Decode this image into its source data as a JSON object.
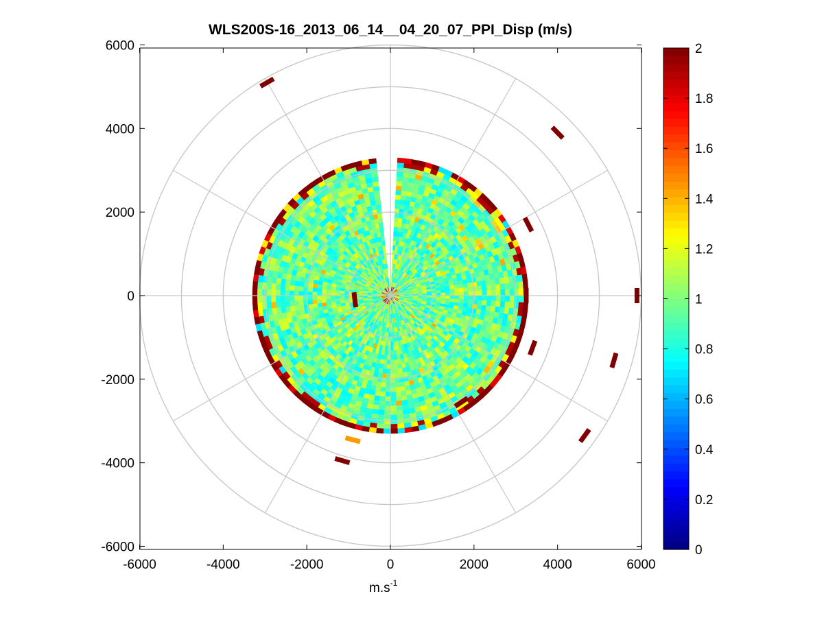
{
  "chart_data": {
    "type": "heatmap",
    "subtype": "polar-ppi-scan",
    "title": "WLS200S-16_2013_06_14__04_20_07_PPI_Disp (m/s)",
    "xlabel": "m.s",
    "xlabel_superscript": "-1",
    "ylabel": "",
    "xlim": [
      -6000,
      6000
    ],
    "ylim": [
      -6000,
      6000
    ],
    "xticks": [
      -6000,
      -4000,
      -2000,
      0,
      2000,
      4000,
      6000
    ],
    "yticks": [
      6000,
      4000,
      2000,
      0,
      -2000,
      -4000,
      -6000
    ],
    "xtick_labels": [
      "-6000",
      "-4000",
      "-2000",
      "0",
      "2000",
      "4000",
      "6000"
    ],
    "ytick_labels": [
      "6000",
      "4000",
      "2000",
      "0",
      "-2000",
      "-4000",
      "-6000"
    ],
    "polar_grid": {
      "range_rings": [
        1000,
        2000,
        3000,
        4000,
        5000,
        6000
      ],
      "spokes_deg": [
        0,
        30,
        60,
        90,
        120,
        150,
        180,
        210,
        240,
        270,
        300,
        330
      ]
    },
    "scan": {
      "max_range": 3300,
      "gap_azimuth_deg": [
        -7,
        3
      ],
      "typical_dispersion": 0.95,
      "edge_band_value": 2.0,
      "outliers": [
        {
          "x": -2950,
          "y": 5100,
          "value": 2.0
        },
        {
          "x": 4000,
          "y": 3900,
          "value": 2.0
        },
        {
          "x": 5900,
          "y": 0,
          "value": 2.0
        },
        {
          "x": 5350,
          "y": -1550,
          "value": 2.0
        },
        {
          "x": 4650,
          "y": -3350,
          "value": 2.0
        },
        {
          "x": 1700,
          "y": -2550,
          "value": 2.0
        },
        {
          "x": -1150,
          "y": -3950,
          "value": 2.0
        },
        {
          "x": -900,
          "y": -3450,
          "value": 1.45
        },
        {
          "x": -850,
          "y": -100,
          "value": 2.0
        },
        {
          "x": 3400,
          "y": -1250,
          "value": 2.0
        },
        {
          "x": 3300,
          "y": 1700,
          "value": 2.0
        },
        {
          "x": 3250,
          "y": 0,
          "value": 2.0
        }
      ]
    },
    "colorbar": {
      "colormap": "jet",
      "range": [
        0,
        2
      ],
      "ticks": [
        "0",
        "0.2",
        "0.4",
        "0.6",
        "0.8",
        "1",
        "1.2",
        "1.4",
        "1.6",
        "1.8",
        "2"
      ]
    }
  }
}
